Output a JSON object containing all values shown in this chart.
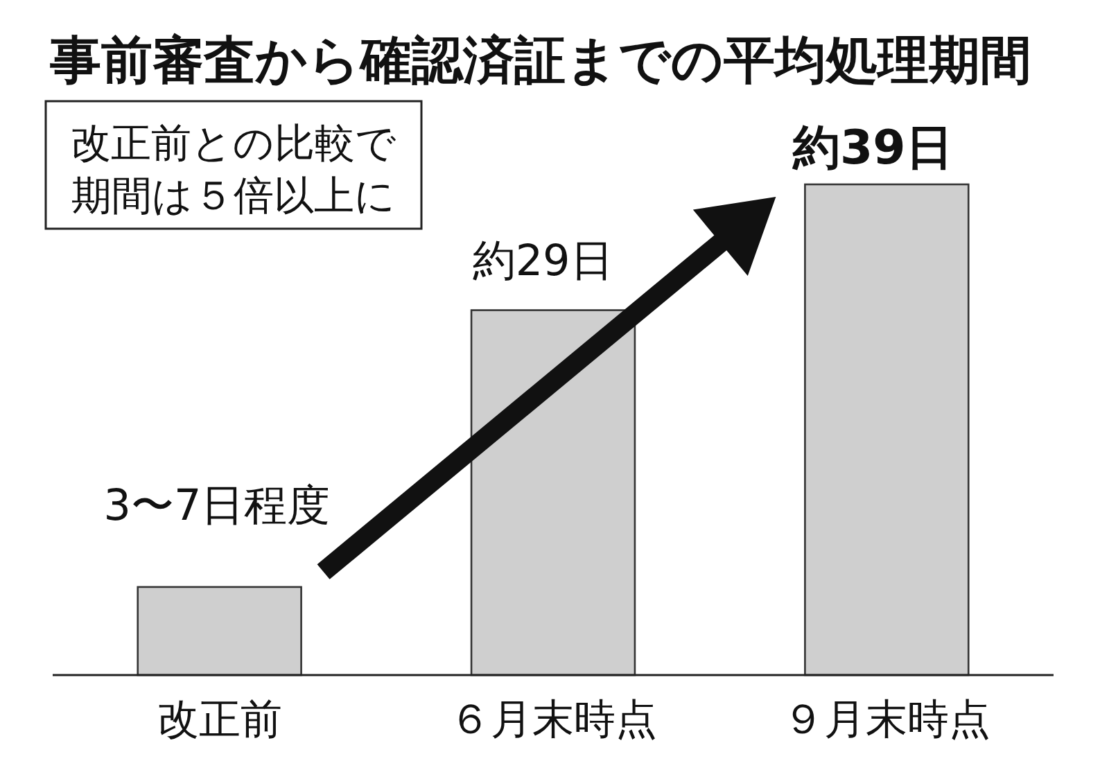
{
  "chart_data": {
    "type": "bar",
    "title": "事前審査から確認済証までの平均処理期間",
    "categories": [
      "改正前",
      "６月末時点",
      "９月末時点"
    ],
    "values": [
      7,
      29,
      39
    ],
    "value_labels": [
      "3〜7日程度",
      "約29日",
      "約39日"
    ],
    "color": "#cfcfcf",
    "annotations": [
      "改正前との比較で期間は５倍以上に"
    ]
  }
}
